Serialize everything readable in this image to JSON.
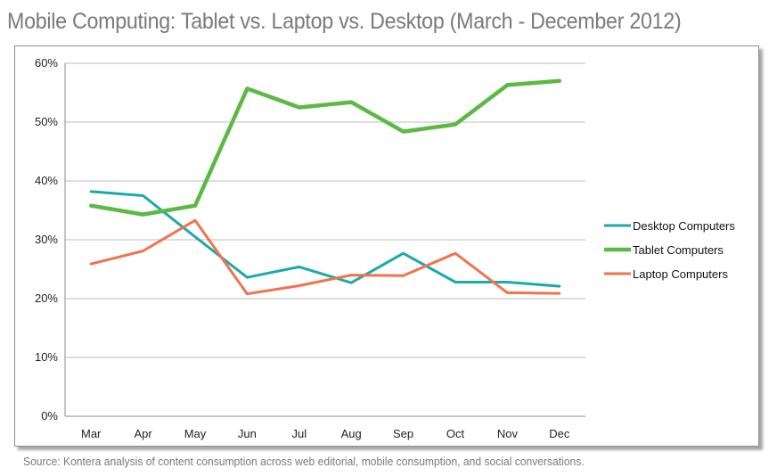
{
  "chart_data": {
    "type": "line",
    "title": "Mobile Computing: Tablet vs. Laptop vs. Desktop  (March - December 2012)",
    "xlabel": "",
    "ylabel": "",
    "categories": [
      "Mar",
      "Apr",
      "May",
      "Jun",
      "Jul",
      "Aug",
      "Sep",
      "Oct",
      "Nov",
      "Dec"
    ],
    "ylim": [
      0,
      60
    ],
    "yticks": [
      0,
      10,
      20,
      30,
      40,
      50,
      60
    ],
    "ytick_labels": [
      "0%",
      "10%",
      "20%",
      "30%",
      "40%",
      "50%",
      "60%"
    ],
    "grid": true,
    "legend_position": "right",
    "series": [
      {
        "name": "Desktop Computers",
        "color": "#1aaaaa",
        "values": [
          38.2,
          37.5,
          30.5,
          23.6,
          25.4,
          22.7,
          27.7,
          22.8,
          22.8,
          22.1
        ]
      },
      {
        "name": "Tablet Computers",
        "color": "#5cb946",
        "values": [
          35.8,
          34.3,
          35.8,
          55.7,
          52.5,
          53.4,
          48.4,
          49.6,
          56.3,
          57.0
        ]
      },
      {
        "name": "Laptop Computers",
        "color": "#f1734e",
        "values": [
          25.9,
          28.1,
          33.3,
          20.8,
          22.2,
          24.0,
          23.9,
          27.7,
          21.0,
          20.9
        ]
      }
    ]
  },
  "source": "Source: Kontera analysis of content consumption across web editorial, mobile consumption, and social conversations."
}
